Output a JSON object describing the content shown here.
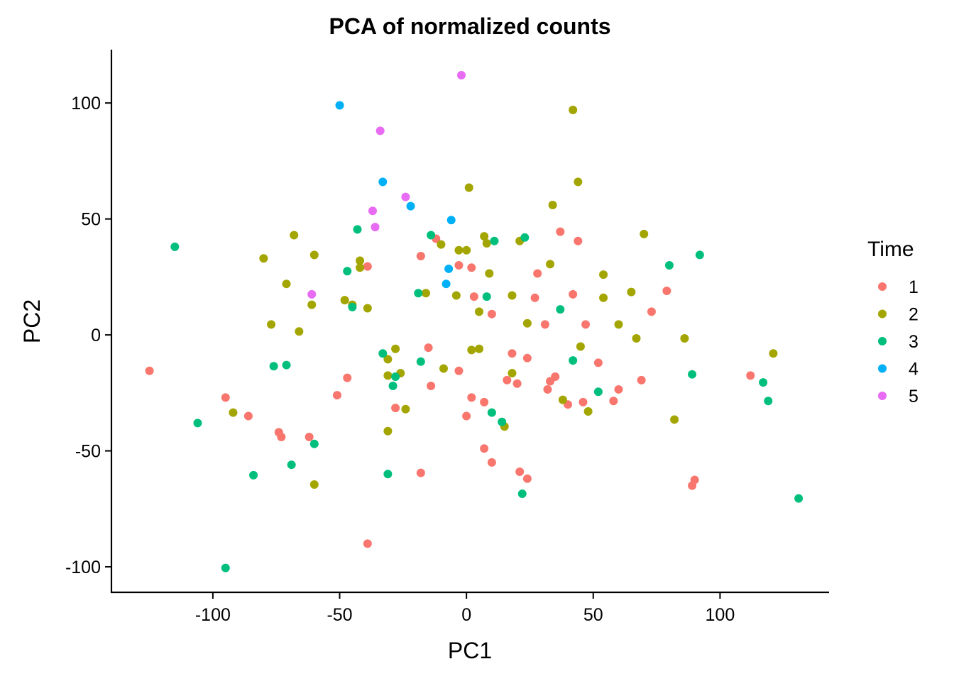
{
  "chart_data": {
    "type": "scatter",
    "title": "PCA of normalized counts",
    "xlabel": "PC1",
    "ylabel": "PC2",
    "xlim": [
      -140,
      143
    ],
    "ylim": [
      -111,
      123
    ],
    "xticks": [
      -100,
      -50,
      0,
      50,
      100
    ],
    "yticks": [
      -100,
      -50,
      0,
      50,
      100
    ],
    "grid": false,
    "legend": {
      "title": "Time",
      "position": "right"
    },
    "series": [
      {
        "name": "1",
        "color": "#F8766D",
        "points": [
          [
            -125,
            -15.5
          ],
          [
            -95,
            -27
          ],
          [
            -86,
            -35
          ],
          [
            -74,
            -42
          ],
          [
            -73,
            -44
          ],
          [
            -62,
            -44
          ],
          [
            -51,
            -26
          ],
          [
            -47,
            -18.5
          ],
          [
            -39,
            29.5
          ],
          [
            -39,
            -90
          ],
          [
            -28,
            -31.5
          ],
          [
            -18,
            34
          ],
          [
            -18,
            -59.5
          ],
          [
            -15,
            -5.5
          ],
          [
            -14,
            -22
          ],
          [
            -12,
            41.5
          ],
          [
            -3,
            -15.5
          ],
          [
            -3,
            30
          ],
          [
            2,
            29
          ],
          [
            2,
            -27
          ],
          [
            3,
            16.5
          ],
          [
            0,
            -35
          ],
          [
            7,
            -29
          ],
          [
            7,
            -49
          ],
          [
            10,
            -55
          ],
          [
            10,
            9
          ],
          [
            16,
            -19.5
          ],
          [
            18,
            -8
          ],
          [
            20,
            -21
          ],
          [
            21,
            -59
          ],
          [
            24,
            -62
          ],
          [
            24,
            -10
          ],
          [
            27,
            16
          ],
          [
            28,
            26.5
          ],
          [
            31,
            4.5
          ],
          [
            32,
            -23.5
          ],
          [
            33,
            -20
          ],
          [
            35,
            -18
          ],
          [
            37,
            44.5
          ],
          [
            40,
            -30
          ],
          [
            42,
            17.5
          ],
          [
            44,
            40.5
          ],
          [
            46,
            -29
          ],
          [
            47,
            4.5
          ],
          [
            52,
            -12
          ],
          [
            58,
            -28.5
          ],
          [
            60,
            -23.5
          ],
          [
            69,
            -19.5
          ],
          [
            73,
            10
          ],
          [
            79,
            19
          ],
          [
            89,
            -65
          ],
          [
            90,
            -62.5
          ],
          [
            112,
            -17.5
          ]
        ]
      },
      {
        "name": "2",
        "color": "#A3A500",
        "points": [
          [
            -92,
            -33.5
          ],
          [
            -80,
            33
          ],
          [
            -77,
            4.5
          ],
          [
            -71,
            22
          ],
          [
            -68,
            43
          ],
          [
            -66,
            1.5
          ],
          [
            -61,
            13
          ],
          [
            -60,
            34.5
          ],
          [
            -60,
            -64.5
          ],
          [
            -48,
            15
          ],
          [
            -45,
            13
          ],
          [
            -42,
            32
          ],
          [
            -42,
            29
          ],
          [
            -39,
            11.5
          ],
          [
            -31,
            -10.5
          ],
          [
            -31,
            -17.5
          ],
          [
            -31,
            -41.5
          ],
          [
            -28,
            -6
          ],
          [
            -26,
            -16.5
          ],
          [
            -24,
            -32
          ],
          [
            -16,
            18
          ],
          [
            -10,
            39
          ],
          [
            -9,
            -14.5
          ],
          [
            -4,
            17
          ],
          [
            -3,
            36.5
          ],
          [
            0,
            36.5
          ],
          [
            1,
            63.5
          ],
          [
            2,
            -6.5
          ],
          [
            5,
            -6
          ],
          [
            5,
            10
          ],
          [
            7,
            42.5
          ],
          [
            8,
            39.5
          ],
          [
            9,
            26.5
          ],
          [
            15,
            -39.5
          ],
          [
            18,
            -16.5
          ],
          [
            18,
            17
          ],
          [
            21,
            40.5
          ],
          [
            24,
            5
          ],
          [
            33,
            30.5
          ],
          [
            34,
            56
          ],
          [
            38,
            -28
          ],
          [
            42,
            97
          ],
          [
            44,
            66
          ],
          [
            45,
            -5
          ],
          [
            48,
            -33
          ],
          [
            54,
            16
          ],
          [
            54,
            26
          ],
          [
            60,
            4.5
          ],
          [
            65,
            18.5
          ],
          [
            67,
            -1.5
          ],
          [
            70,
            43.5
          ],
          [
            82,
            -36.5
          ],
          [
            86,
            -1.5
          ],
          [
            121,
            -8
          ]
        ]
      },
      {
        "name": "3",
        "color": "#00BF7D",
        "points": [
          [
            -115,
            38
          ],
          [
            -106,
            -38
          ],
          [
            -95,
            -100.5
          ],
          [
            -84,
            -60.5
          ],
          [
            -76,
            -13.5
          ],
          [
            -71,
            -13
          ],
          [
            -69,
            -56
          ],
          [
            -60,
            -47
          ],
          [
            -47,
            27.5
          ],
          [
            -45,
            12
          ],
          [
            -43,
            45.5
          ],
          [
            -33,
            -8
          ],
          [
            -31,
            -60
          ],
          [
            -29,
            -22
          ],
          [
            -28,
            -18
          ],
          [
            -19,
            18
          ],
          [
            -18,
            -11.5
          ],
          [
            -14,
            43
          ],
          [
            8,
            16.5
          ],
          [
            10,
            -33.5
          ],
          [
            11,
            40.5
          ],
          [
            14,
            -37.5
          ],
          [
            22,
            -68.5
          ],
          [
            23,
            42
          ],
          [
            37,
            11
          ],
          [
            42,
            -11
          ],
          [
            52,
            -24.5
          ],
          [
            80,
            30
          ],
          [
            89,
            -17
          ],
          [
            92,
            34.5
          ],
          [
            117,
            -20.5
          ],
          [
            119,
            -28.5
          ],
          [
            131,
            -70.5
          ]
        ]
      },
      {
        "name": "4",
        "color": "#00B0F6",
        "points": [
          [
            -50,
            99
          ],
          [
            -33,
            66
          ],
          [
            -22,
            55.5
          ],
          [
            -8,
            22
          ],
          [
            -7,
            28.5
          ],
          [
            -6,
            49.5
          ]
        ]
      },
      {
        "name": "5",
        "color": "#E76BF3",
        "points": [
          [
            -61,
            17.5
          ],
          [
            -37,
            53.5
          ],
          [
            -36,
            46.5
          ],
          [
            -34,
            88
          ],
          [
            -24,
            59.5
          ],
          [
            -2,
            112
          ]
        ]
      }
    ]
  }
}
